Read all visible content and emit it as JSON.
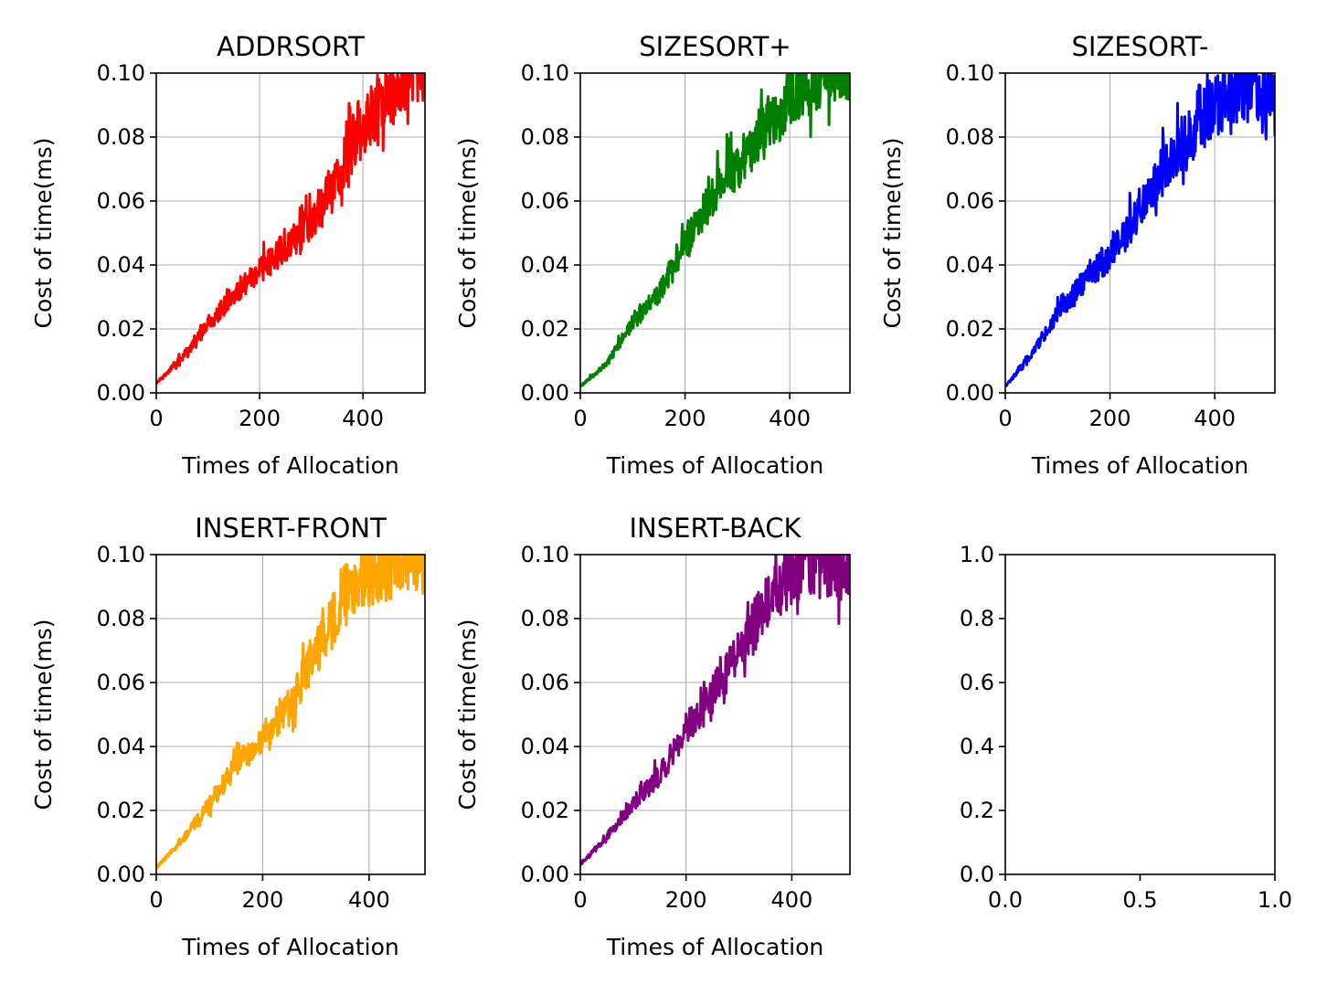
{
  "chart_data": [
    {
      "type": "line",
      "title": "ADDRSORT",
      "xlabel": "Times of Allocation",
      "ylabel": "Cost of time(ms)",
      "xlim": [
        0,
        520
      ],
      "ylim": [
        0.0,
        0.1
      ],
      "xticks": [
        0,
        200,
        400
      ],
      "yticks": [
        0.0,
        0.02,
        0.04,
        0.06,
        0.08,
        0.1
      ],
      "xtick_labels": [
        "0",
        "200",
        "400"
      ],
      "ytick_labels": [
        "0.00",
        "0.02",
        "0.04",
        "0.06",
        "0.08",
        "0.10"
      ],
      "grid": true,
      "color": "#ff0000",
      "series": [
        {
          "x": [
            0,
            50,
            100,
            150,
            200,
            250,
            300,
            350,
            400,
            450,
            500,
            520
          ],
          "y": [
            0.003,
            0.011,
            0.021,
            0.031,
            0.038,
            0.046,
            0.053,
            0.068,
            0.083,
            0.094,
            0.1,
            0.1
          ]
        }
      ]
    },
    {
      "type": "line",
      "title": "SIZESORT+",
      "xlabel": "Times of Allocation",
      "ylabel": "Cost of time(ms)",
      "xlim": [
        0,
        515
      ],
      "ylim": [
        0.0,
        0.1
      ],
      "xticks": [
        0,
        200,
        400
      ],
      "yticks": [
        0.0,
        0.02,
        0.04,
        0.06,
        0.08,
        0.1
      ],
      "xtick_labels": [
        "0",
        "200",
        "400"
      ],
      "ytick_labels": [
        "0.00",
        "0.02",
        "0.04",
        "0.06",
        "0.08",
        "0.10"
      ],
      "grid": true,
      "color": "#008000",
      "series": [
        {
          "x": [
            0,
            50,
            100,
            150,
            200,
            250,
            300,
            350,
            400,
            450,
            515
          ],
          "y": [
            0.002,
            0.009,
            0.022,
            0.031,
            0.047,
            0.061,
            0.071,
            0.082,
            0.092,
            0.097,
            0.1
          ]
        }
      ]
    },
    {
      "type": "line",
      "title": "SIZESORT-",
      "xlabel": "Times of Allocation",
      "ylabel": "Cost of time(ms)",
      "xlim": [
        0,
        515
      ],
      "ylim": [
        0.0,
        0.1
      ],
      "xticks": [
        0,
        200,
        400
      ],
      "yticks": [
        0.0,
        0.02,
        0.04,
        0.06,
        0.08,
        0.1
      ],
      "xtick_labels": [
        "0",
        "200",
        "400"
      ],
      "ytick_labels": [
        "0.00",
        "0.02",
        "0.04",
        "0.06",
        "0.08",
        "0.10"
      ],
      "grid": true,
      "color": "#0000ff",
      "series": [
        {
          "x": [
            0,
            50,
            100,
            150,
            200,
            250,
            300,
            350,
            400,
            450,
            500,
            515
          ],
          "y": [
            0.002,
            0.012,
            0.025,
            0.035,
            0.043,
            0.055,
            0.068,
            0.08,
            0.089,
            0.095,
            0.095,
            0.09
          ]
        }
      ]
    },
    {
      "type": "line",
      "title": "INSERT-FRONT",
      "xlabel": "Times of Allocation",
      "ylabel": "Cost of time(ms)",
      "xlim": [
        0,
        505
      ],
      "ylim": [
        0.0,
        0.1
      ],
      "xticks": [
        0,
        200,
        400
      ],
      "yticks": [
        0.0,
        0.02,
        0.04,
        0.06,
        0.08,
        0.1
      ],
      "xtick_labels": [
        "0",
        "200",
        "400"
      ],
      "ytick_labels": [
        "0.00",
        "0.02",
        "0.04",
        "0.06",
        "0.08",
        "0.10"
      ],
      "grid": true,
      "color": "#ffa500",
      "series": [
        {
          "x": [
            0,
            50,
            100,
            150,
            200,
            250,
            300,
            350,
            400,
            450,
            505
          ],
          "y": [
            0.002,
            0.011,
            0.022,
            0.034,
            0.043,
            0.052,
            0.07,
            0.085,
            0.092,
            0.098,
            0.098
          ]
        }
      ]
    },
    {
      "type": "line",
      "title": "INSERT-BACK",
      "xlabel": "Times of Allocation",
      "ylabel": "Cost of time(ms)",
      "xlim": [
        0,
        510
      ],
      "ylim": [
        0.0,
        0.1
      ],
      "xticks": [
        0,
        200,
        400
      ],
      "yticks": [
        0.0,
        0.02,
        0.04,
        0.06,
        0.08,
        0.1
      ],
      "xtick_labels": [
        "0",
        "200",
        "400"
      ],
      "ytick_labels": [
        "0.00",
        "0.02",
        "0.04",
        "0.06",
        "0.08",
        "0.10"
      ],
      "grid": true,
      "color": "#800080",
      "series": [
        {
          "x": [
            0,
            50,
            100,
            150,
            200,
            250,
            300,
            350,
            400,
            450,
            500,
            510
          ],
          "y": [
            0.003,
            0.012,
            0.022,
            0.031,
            0.044,
            0.056,
            0.07,
            0.083,
            0.095,
            0.097,
            0.096,
            0.095
          ]
        }
      ]
    },
    {
      "type": "line",
      "title": "",
      "xlabel": "",
      "ylabel": "",
      "xlim": [
        0.0,
        1.0
      ],
      "ylim": [
        0.0,
        1.0
      ],
      "xticks": [
        0.0,
        0.5,
        1.0
      ],
      "yticks": [
        0.0,
        0.2,
        0.4,
        0.6,
        0.8,
        1.0
      ],
      "xtick_labels": [
        "0.0",
        "0.5",
        "1.0"
      ],
      "ytick_labels": [
        "0.0",
        "0.2",
        "0.4",
        "0.6",
        "0.8",
        "1.0"
      ],
      "grid": false,
      "series": []
    }
  ]
}
